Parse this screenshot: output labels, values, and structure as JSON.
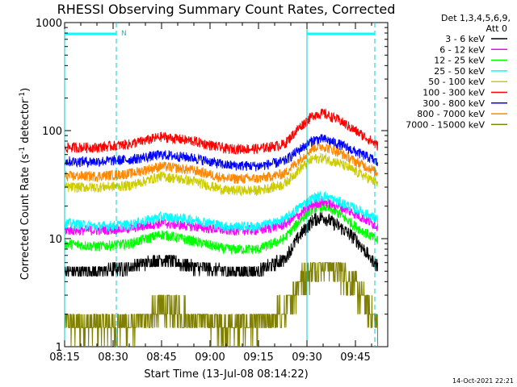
{
  "chart_data": {
    "type": "line",
    "title": "RHESSI Observing Summary Count Rates, Corrected",
    "xlabel": "Start Time (13-Jul-08 08:14:22)",
    "ylabel_main": "Corrected Count Rate (s",
    "ylabel_sup1": "-1",
    "ylabel_mid": " detector",
    "ylabel_sup2": "-1",
    "ylabel_end": ")",
    "yscale": "log",
    "ylim": [
      1,
      1000
    ],
    "xlim_minutes": [
      495,
      595
    ],
    "x_ticks": [
      {
        "label": "08:15",
        "minutes": 495
      },
      {
        "label": "08:30",
        "minutes": 510
      },
      {
        "label": "08:45",
        "minutes": 525
      },
      {
        "label": "09:00",
        "minutes": 540
      },
      {
        "label": "09:15",
        "minutes": 555
      },
      {
        "label": "09:30",
        "minutes": 570
      },
      {
        "label": "09:45",
        "minutes": 585
      }
    ],
    "y_ticks": [
      {
        "label": "1",
        "value": 1
      },
      {
        "label": "10",
        "value": 10
      },
      {
        "label": "100",
        "value": 100
      },
      {
        "label": "1000",
        "value": 1000
      }
    ],
    "legend_header": [
      "Det 1,3,4,5,6,9,",
      "Att 0"
    ],
    "legend_position": "right",
    "annotation_n": "N",
    "series": [
      {
        "name": "3 - 6 keV",
        "color": "#000000",
        "x": [
          495,
          505,
          515,
          525,
          535,
          545,
          555,
          563,
          568,
          572,
          575,
          580,
          585,
          590,
          592
        ],
        "y": [
          5,
          5,
          5.5,
          6.5,
          5.5,
          5,
          5,
          6.5,
          11,
          15,
          16,
          13,
          10,
          6.5,
          5.5
        ]
      },
      {
        "name": "6 - 12 keV",
        "color": "#ff00ff",
        "x": [
          495,
          505,
          515,
          525,
          535,
          545,
          555,
          563,
          568,
          572,
          575,
          580,
          585,
          590,
          592
        ],
        "y": [
          12,
          12,
          12.5,
          14,
          13,
          12,
          12,
          13.5,
          17,
          21,
          22,
          20,
          17,
          14,
          13
        ]
      },
      {
        "name": "12 - 25 keV",
        "color": "#00ff00",
        "x": [
          495,
          505,
          515,
          525,
          535,
          545,
          555,
          563,
          568,
          572,
          575,
          580,
          585,
          590,
          592
        ],
        "y": [
          9,
          8.5,
          9,
          11,
          9.5,
          8,
          8,
          10,
          15,
          19,
          20,
          17,
          13,
          10.5,
          9.5
        ]
      },
      {
        "name": "25 - 50 keV",
        "color": "#00ffff",
        "x": [
          495,
          505,
          515,
          525,
          535,
          545,
          555,
          563,
          568,
          572,
          575,
          580,
          585,
          590,
          592
        ],
        "y": [
          14,
          13,
          13.5,
          16,
          15,
          13,
          13,
          15,
          20,
          24,
          25,
          22,
          19,
          16,
          15
        ]
      },
      {
        "name": "50 - 100 keV",
        "color": "#cccc00",
        "x": [
          495,
          505,
          515,
          525,
          535,
          545,
          555,
          563,
          568,
          572,
          575,
          580,
          585,
          590,
          592
        ],
        "y": [
          30,
          30,
          31,
          38,
          34,
          28,
          28,
          32,
          45,
          55,
          56,
          50,
          42,
          35,
          32
        ]
      },
      {
        "name": "100 - 300 keV",
        "color": "#ff0000",
        "x": [
          495,
          505,
          515,
          525,
          535,
          545,
          555,
          563,
          568,
          572,
          575,
          580,
          585,
          590,
          592
        ],
        "y": [
          70,
          70,
          75,
          88,
          80,
          68,
          68,
          75,
          110,
          140,
          145,
          125,
          100,
          80,
          72
        ]
      },
      {
        "name": "300 - 800 keV",
        "color": "#0000ff",
        "x": [
          495,
          505,
          515,
          525,
          535,
          545,
          555,
          563,
          568,
          572,
          575,
          580,
          585,
          590,
          592
        ],
        "y": [
          52,
          52,
          54,
          60,
          56,
          48,
          47,
          52,
          68,
          82,
          84,
          75,
          64,
          55,
          50
        ]
      },
      {
        "name": "800 - 7000 keV",
        "color": "#ff8800",
        "x": [
          495,
          505,
          515,
          525,
          535,
          545,
          555,
          563,
          568,
          572,
          575,
          580,
          585,
          590,
          592
        ],
        "y": [
          38,
          38,
          40,
          47,
          43,
          36,
          36,
          40,
          55,
          70,
          72,
          63,
          52,
          44,
          40
        ]
      },
      {
        "name": "7000 - 15000 keV",
        "color": "#808000",
        "x": [
          495,
          505,
          515,
          525,
          535,
          545,
          555,
          563,
          568,
          572,
          575,
          580,
          585,
          590,
          592
        ],
        "y": [
          1.5,
          1.5,
          1.5,
          2.2,
          1.8,
          1.5,
          1.5,
          2,
          4,
          5,
          6,
          5,
          3.5,
          2,
          1.5
        ]
      }
    ],
    "vertical_lines_minutes": [
      495,
      511,
      570,
      596
    ],
    "night_bars": [
      [
        495,
        511
      ],
      [
        570,
        596
      ]
    ]
  },
  "footer_date": "14-Oct-2021 22:21"
}
